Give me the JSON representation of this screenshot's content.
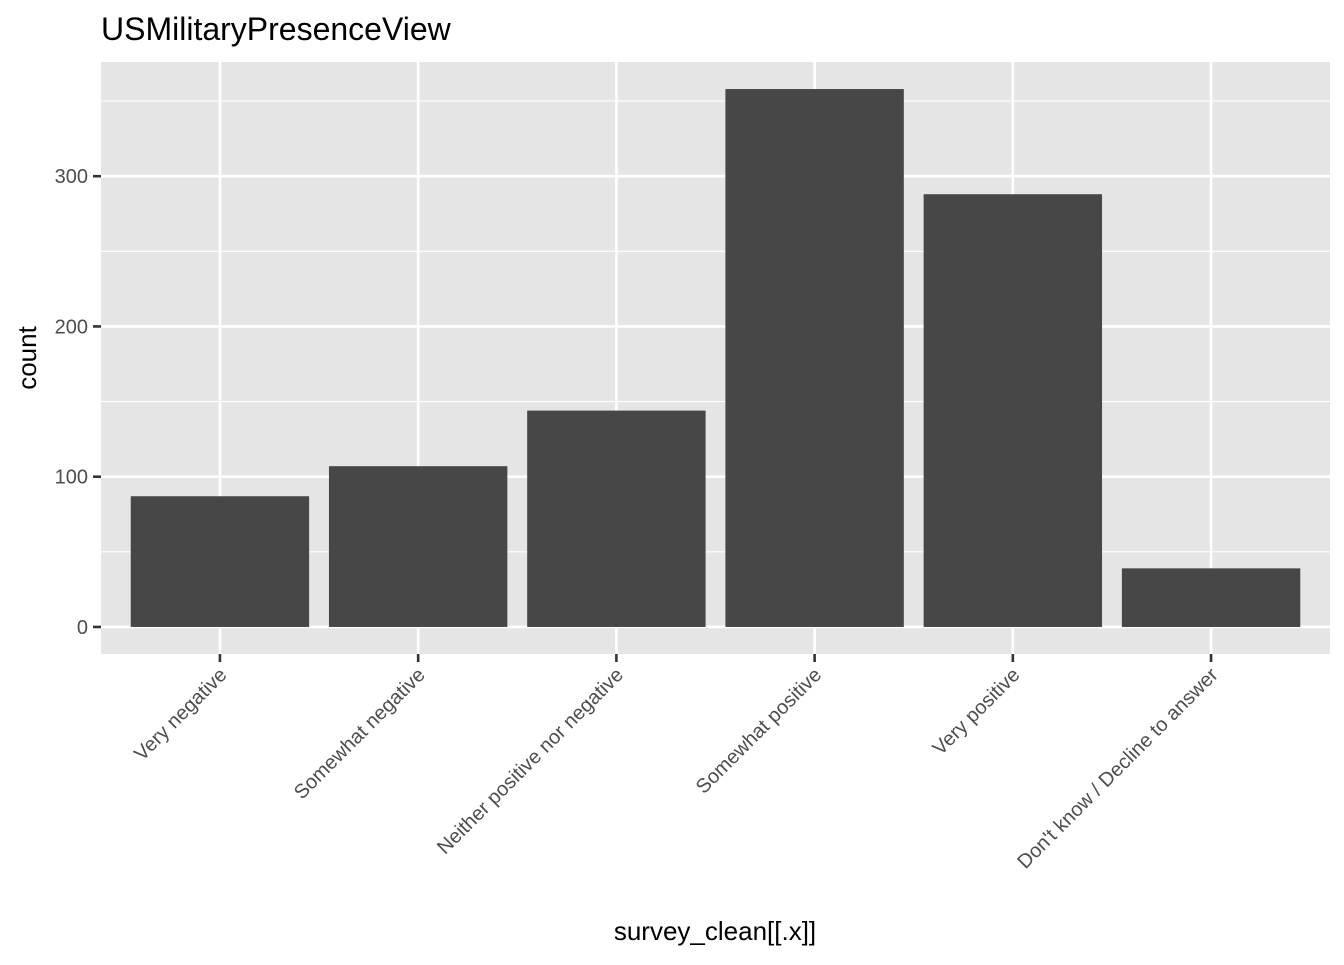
{
  "chart_data": {
    "type": "bar",
    "title": "USMilitaryPresenceView",
    "xlabel": "survey_clean[[.x]]",
    "ylabel": "count",
    "categories": [
      "Very negative",
      "Somewhat negative",
      "Neither positive nor negative",
      "Somewhat positive",
      "Very positive",
      "Don't know / Decline to answer"
    ],
    "values": [
      87,
      107,
      144,
      358,
      288,
      39
    ],
    "ylim": [
      -18,
      376
    ],
    "y_ticks": [
      0,
      100,
      200,
      300
    ],
    "grid": true,
    "colors": {
      "bar": "#474747",
      "panel": "#e5e5e5",
      "grid": "#ffffff"
    }
  }
}
